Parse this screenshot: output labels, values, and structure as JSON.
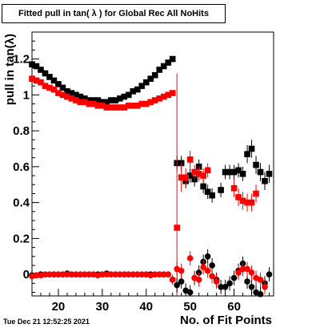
{
  "title": "Fitted pull in tan( λ ) for Global Rec All NoHits",
  "timestamp": "Tue Dec 21 12:52:25 2021",
  "chart_data": {
    "type": "scatter",
    "xlabel": "No. of Fit Points",
    "ylabel": "pull in tan(λ)",
    "xlim": [
      14,
      69
    ],
    "ylim": [
      -0.12,
      1.35
    ],
    "x_ticks": [
      20,
      30,
      40,
      50,
      60
    ],
    "y_ticks": [
      0,
      0.2,
      0.4,
      0.6,
      0.8,
      1,
      1.2
    ],
    "y_tick_labels": [
      "0",
      "0.2",
      "0.4",
      "0.6",
      "0.8",
      "1",
      "1.2"
    ],
    "grid": false,
    "legend": "none",
    "series": [
      {
        "color": "#000000",
        "marker": "square",
        "x": [
          14,
          15,
          16,
          17,
          18,
          19,
          20,
          21,
          22,
          23,
          24,
          25,
          26,
          27,
          28,
          29,
          30,
          31,
          32,
          33,
          34,
          35,
          36,
          37,
          38,
          39,
          40,
          41,
          42,
          43,
          44,
          45,
          46,
          47,
          48,
          49,
          50,
          51,
          52,
          53,
          54,
          55,
          56,
          57,
          58,
          59,
          60,
          61,
          62,
          63,
          64,
          65,
          66,
          67,
          68
        ],
        "y": [
          1.17,
          1.16,
          1.14,
          1.12,
          1.1,
          1.08,
          1.06,
          1.04,
          1.02,
          1.01,
          1.0,
          0.99,
          0.98,
          0.97,
          0.97,
          0.97,
          0.96,
          0.96,
          0.97,
          0.97,
          0.98,
          0.99,
          1.0,
          1.02,
          1.03,
          1.05,
          1.07,
          1.09,
          1.11,
          1.14,
          1.16,
          1.18,
          1.2,
          0.62,
          0.62,
          0.52,
          0.55,
          0.53,
          0.6,
          0.49,
          0.46,
          0.44,
          null,
          0.47,
          0.57,
          0.57,
          0.57,
          0.58,
          0.56,
          0.67,
          0.7,
          0.61,
          0.57,
          0.52,
          0.56
        ],
        "yerr": [
          0.01,
          0.01,
          0.01,
          0.01,
          0.01,
          0.01,
          0.01,
          0.01,
          0.01,
          0.01,
          0.01,
          0.01,
          0.01,
          0.01,
          0.01,
          0.01,
          0.01,
          0.01,
          0.01,
          0.01,
          0.01,
          0.01,
          0.01,
          0.01,
          0.01,
          0.01,
          0.01,
          0.01,
          0.01,
          0.01,
          0.01,
          0.01,
          0.01,
          0.04,
          0.04,
          0.04,
          0.04,
          0.04,
          0.04,
          0.04,
          0.04,
          0.04,
          null,
          0.04,
          0.04,
          0.04,
          0.04,
          0.04,
          0.04,
          0.05,
          0.05,
          0.05,
          0.05,
          0.05,
          0.05
        ]
      },
      {
        "color": "#ff0000",
        "marker": "square",
        "x": [
          14,
          15,
          16,
          17,
          18,
          19,
          20,
          21,
          22,
          23,
          24,
          25,
          26,
          27,
          28,
          29,
          30,
          31,
          32,
          33,
          34,
          35,
          36,
          37,
          38,
          39,
          40,
          41,
          42,
          43,
          44,
          45,
          46,
          47,
          48,
          49,
          50,
          51,
          52,
          53,
          54,
          55,
          56,
          57,
          58,
          59,
          60,
          61,
          62,
          63,
          64,
          65,
          66,
          67,
          68
        ],
        "y": [
          1.09,
          1.08,
          1.07,
          1.05,
          1.04,
          1.03,
          1.01,
          1.0,
          0.99,
          0.98,
          0.97,
          0.96,
          0.96,
          0.95,
          0.95,
          0.94,
          0.94,
          0.93,
          0.93,
          0.93,
          0.93,
          0.93,
          0.94,
          0.94,
          0.94,
          0.95,
          0.95,
          0.96,
          0.97,
          0.98,
          0.99,
          1.0,
          1.01,
          0.26,
          0.54,
          0.54,
          0.64,
          0.57,
          0.56,
          0.55,
          0.58,
          null,
          null,
          null,
          null,
          null,
          0.48,
          0.43,
          0.41,
          0.4,
          0.4,
          0.45,
          null,
          null,
          null
        ],
        "yerr": [
          0.01,
          0.01,
          0.01,
          0.01,
          0.01,
          0.01,
          0.01,
          0.01,
          0.01,
          0.01,
          0.01,
          0.01,
          0.01,
          0.01,
          0.01,
          0.01,
          0.01,
          0.01,
          0.01,
          0.01,
          0.01,
          0.01,
          0.01,
          0.01,
          0.01,
          0.01,
          0.01,
          0.01,
          0.01,
          0.01,
          0.01,
          0.01,
          0.01,
          0.86,
          0.08,
          0.05,
          0.05,
          0.04,
          0.04,
          0.04,
          0.04,
          null,
          null,
          null,
          null,
          null,
          0.05,
          0.05,
          0.05,
          0.05,
          0.05,
          0.05,
          null,
          null,
          null
        ]
      },
      {
        "color": "#000000",
        "marker": "circle",
        "x": [
          14,
          15,
          16,
          17,
          18,
          19,
          20,
          21,
          22,
          23,
          24,
          25,
          26,
          27,
          28,
          29,
          30,
          31,
          32,
          33,
          34,
          35,
          36,
          37,
          38,
          39,
          40,
          41,
          42,
          43,
          44,
          45,
          46,
          47,
          48,
          49,
          50,
          51,
          52,
          53,
          54,
          55,
          56,
          57,
          58,
          59,
          60,
          61,
          62,
          63,
          64,
          65,
          66,
          67,
          68
        ],
        "y": [
          -0.005,
          -0.005,
          0.0,
          0.0,
          0.0,
          0.0,
          0.0,
          0.0,
          0.005,
          0.0,
          0.0,
          0.0,
          0.0,
          0.0,
          0.0,
          0.0,
          0.0,
          0.005,
          0.0,
          0.0,
          0.0,
          0.0,
          0.0,
          0.0,
          0.0,
          0.0,
          0.0,
          0.0,
          0.0,
          0.0,
          0.0,
          0.0,
          -0.03,
          -0.06,
          -0.04,
          -0.09,
          -0.1,
          -0.02,
          0.01,
          0.07,
          0.1,
          0.05,
          -0.03,
          -0.07,
          -0.07,
          -0.05,
          -0.02,
          0.02,
          0.06,
          -0.04,
          -0.07,
          -0.1,
          -0.11,
          -0.05,
          0.0
        ],
        "yerr": [
          0.005,
          0.005,
          0.005,
          0.005,
          0.005,
          0.005,
          0.005,
          0.005,
          0.005,
          0.005,
          0.005,
          0.005,
          0.005,
          0.005,
          0.005,
          0.005,
          0.005,
          0.005,
          0.005,
          0.005,
          0.005,
          0.005,
          0.005,
          0.005,
          0.005,
          0.005,
          0.005,
          0.005,
          0.005,
          0.005,
          0.005,
          0.005,
          0.02,
          0.04,
          0.04,
          0.04,
          0.04,
          0.04,
          0.04,
          0.04,
          0.04,
          0.04,
          0.04,
          0.04,
          0.04,
          0.04,
          0.04,
          0.04,
          0.04,
          0.04,
          0.04,
          0.04,
          0.04,
          0.04,
          0.04
        ]
      },
      {
        "color": "#ff0000",
        "marker": "circle",
        "x": [
          14,
          15,
          16,
          17,
          18,
          19,
          20,
          21,
          22,
          23,
          24,
          25,
          26,
          27,
          28,
          29,
          30,
          31,
          32,
          33,
          34,
          35,
          36,
          37,
          38,
          39,
          40,
          41,
          42,
          43,
          44,
          45,
          46,
          47,
          48,
          49,
          50,
          51,
          52,
          53,
          54,
          55,
          56,
          57,
          58,
          59,
          60,
          61,
          62,
          63,
          64,
          65,
          66,
          67,
          68
        ],
        "y": [
          -0.01,
          -0.005,
          -0.005,
          0.0,
          0.0,
          0.0,
          0.0,
          0.0,
          0.0,
          0.0,
          0.0,
          0.0,
          0.0,
          0.0,
          0.0,
          -0.005,
          0.0,
          0.0,
          0.0,
          0.0,
          0.0,
          0.0,
          0.0,
          0.0,
          0.0,
          0.0,
          0.0,
          -0.005,
          0.0,
          0.0,
          0.0,
          0.0,
          -0.03,
          0.03,
          0.02,
          null,
          0.09,
          -0.02,
          -0.03,
          0.04,
          0.02,
          -0.01,
          -0.04,
          null,
          null,
          null,
          null,
          0.01,
          0.03,
          0.03,
          0.01,
          -0.02,
          -0.03,
          -0.07,
          null
        ],
        "yerr": [
          0.005,
          0.005,
          0.005,
          0.005,
          0.005,
          0.005,
          0.005,
          0.005,
          0.005,
          0.005,
          0.005,
          0.005,
          0.005,
          0.005,
          0.005,
          0.005,
          0.005,
          0.005,
          0.005,
          0.005,
          0.005,
          0.005,
          0.005,
          0.005,
          0.005,
          0.005,
          0.005,
          0.005,
          0.005,
          0.005,
          0.005,
          0.005,
          0.03,
          0.04,
          0.04,
          null,
          0.04,
          0.04,
          0.04,
          0.04,
          0.04,
          0.04,
          0.04,
          null,
          null,
          null,
          null,
          0.04,
          0.04,
          0.04,
          0.04,
          0.04,
          0.04,
          0.04,
          null
        ]
      }
    ]
  }
}
